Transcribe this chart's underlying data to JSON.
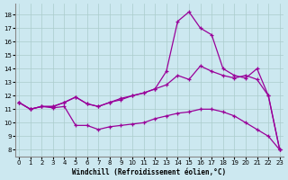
{
  "xlabel": "Windchill (Refroidissement éolien,°C)",
  "x_ticks": [
    0,
    1,
    2,
    3,
    4,
    5,
    6,
    7,
    8,
    9,
    10,
    11,
    12,
    13,
    14,
    15,
    16,
    17,
    18,
    19,
    20,
    21,
    22,
    23
  ],
  "y_ticks": [
    8,
    9,
    10,
    11,
    12,
    13,
    14,
    15,
    16,
    17,
    18
  ],
  "ylim": [
    7.5,
    18.8
  ],
  "xlim": [
    -0.3,
    23.3
  ],
  "bg_color": "#cce8f0",
  "line_color": "#990099",
  "curve1_x": [
    0,
    1,
    2,
    3,
    4,
    5,
    6,
    7,
    8,
    9,
    10,
    11,
    12,
    13,
    14,
    15,
    16,
    17,
    18,
    19,
    20,
    21,
    22,
    23
  ],
  "curve1_y": [
    11.5,
    11.0,
    11.2,
    11.2,
    11.5,
    11.9,
    11.4,
    11.2,
    11.5,
    11.8,
    12.0,
    12.2,
    12.5,
    13.8,
    17.5,
    18.2,
    17.0,
    16.5,
    14.0,
    13.5,
    13.3,
    14.0,
    12.0,
    8.0
  ],
  "curve2_x": [
    0,
    1,
    2,
    3,
    4,
    5,
    6,
    7,
    8,
    9,
    10,
    11,
    12,
    13,
    14,
    15,
    16,
    17,
    18,
    19,
    20,
    21,
    22,
    23
  ],
  "curve2_y": [
    11.5,
    11.0,
    11.2,
    11.2,
    11.5,
    11.9,
    11.4,
    11.2,
    11.5,
    11.7,
    12.0,
    12.2,
    12.5,
    12.8,
    13.5,
    13.2,
    14.2,
    13.8,
    13.5,
    13.3,
    13.5,
    13.2,
    12.0,
    8.0
  ],
  "curve3_x": [
    0,
    1,
    2,
    3,
    4,
    5,
    6,
    7,
    8,
    9,
    10,
    11,
    12,
    13,
    14,
    15,
    16,
    17,
    18,
    19,
    20,
    21,
    22,
    23
  ],
  "curve3_y": [
    11.5,
    11.0,
    11.2,
    11.1,
    11.2,
    9.8,
    9.8,
    9.5,
    9.7,
    9.8,
    9.9,
    10.0,
    10.3,
    10.5,
    10.7,
    10.8,
    11.0,
    11.0,
    10.8,
    10.5,
    10.0,
    9.5,
    9.0,
    8.0
  ]
}
